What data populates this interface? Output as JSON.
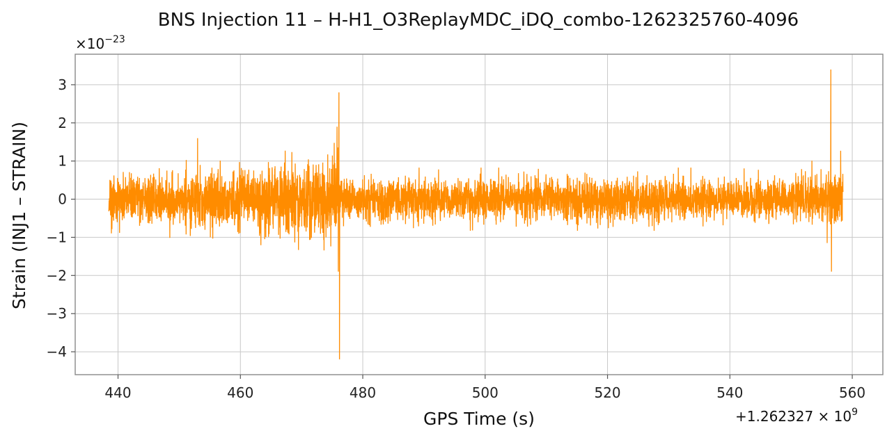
{
  "chart_data": {
    "type": "line",
    "title": "BNS Injection 11 – H-H1_O3ReplayMDC_iDQ_combo-1262325760-4096",
    "xlabel": "GPS Time (s)",
    "ylabel": "Strain (INJ1 – STRAIN)",
    "x_offset_label": "+1.262327 × 10",
    "x_offset_exponent": "9",
    "y_scale_label": "×10",
    "y_scale_exponent": "−23",
    "xlim": [
      433,
      565
    ],
    "ylim": [
      -4.6,
      3.8
    ],
    "x_ticks": [
      440,
      460,
      480,
      500,
      520,
      540,
      560
    ],
    "x_tick_labels": [
      "440",
      "460",
      "480",
      "500",
      "520",
      "540",
      "560"
    ],
    "y_ticks": [
      -4,
      -3,
      -2,
      -1,
      0,
      1,
      2,
      3
    ],
    "y_tick_labels": [
      "−4",
      "−3",
      "−2",
      "−1",
      "0",
      "1",
      "2",
      "3"
    ],
    "grid": true,
    "line_color": "#ff8c00",
    "series": [
      {
        "x_start": 438.5,
        "x_end": 558.5,
        "typical_amplitude_early": 1.0,
        "typical_amplitude_late": 0.9,
        "notable_points": [
          {
            "x": 453.0,
            "y": 1.6
          },
          {
            "x": 475.8,
            "y": 1.9
          },
          {
            "x": 476.1,
            "y": 2.8
          },
          {
            "x": 476.2,
            "y": -4.2
          },
          {
            "x": 476.0,
            "y": -1.9
          },
          {
            "x": 556.5,
            "y": 3.4
          },
          {
            "x": 556.6,
            "y": -1.9
          }
        ]
      }
    ]
  }
}
